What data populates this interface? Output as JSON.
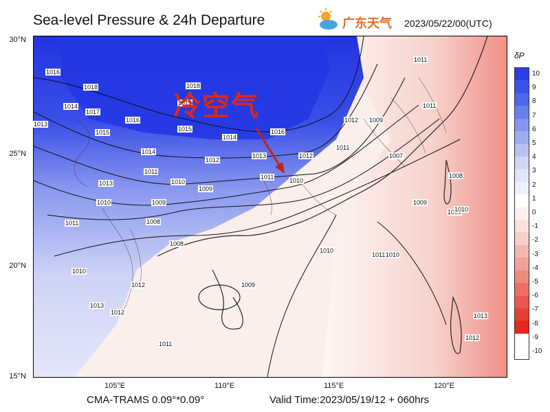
{
  "title": "Sea-level Pressure & 24h Departure",
  "brand_text": "广东天气",
  "date": "2023/05/22/00(UTC)",
  "annotation": "冷空气",
  "footer_left": "CMA-TRAMS 0.09°*0.09°",
  "footer_right": "Valid Time:2023/05/19/12 + 060hrs",
  "y_ticks": [
    "30°N",
    "25°N",
    "20°N",
    "15°N"
  ],
  "x_ticks": [
    "105°E",
    "110°E",
    "115°E",
    "120°E"
  ],
  "colorbar": {
    "title": "δP",
    "labels": [
      "10",
      "9",
      "8",
      "7",
      "6",
      "5",
      "4",
      "3",
      "2",
      "1",
      "0",
      "-1",
      "-2",
      "-3",
      "-4",
      "-5",
      "-6",
      "-7",
      "-8",
      "-9",
      "-10"
    ],
    "colors": [
      "#2b3fe6",
      "#3b52ea",
      "#4f67ec",
      "#6a7fee",
      "#8595f0",
      "#9eabf1",
      "#b8c1f4",
      "#cfd6f7",
      "#e0e5fa",
      "#eef0fc",
      "#ffffff",
      "#fcf0ee",
      "#fae0dc",
      "#f7cfc9",
      "#f4b8b0",
      "#f1a097",
      "#ee8a80",
      "#ec6f66",
      "#ea574e",
      "#e73f36",
      "#e5271f"
    ]
  },
  "isobar_labels": [
    "1016",
    "1018",
    "1017",
    "1014",
    "1013",
    "1015",
    "1016",
    "1018",
    "1015",
    "1015",
    "1014",
    "1016",
    "1014",
    "1013",
    "1012",
    "1011",
    "1010",
    "1009",
    "1012",
    "1013",
    "1011",
    "1010",
    "1009",
    "1008",
    "1010",
    "1011",
    "1012",
    "1009",
    "1007",
    "1011",
    "1011",
    "1008",
    "1009",
    "1010",
    "1011",
    "1010",
    "1012",
    "1013",
    "1012",
    "1011",
    "1009",
    "1008",
    "1010",
    "1009",
    "1010",
    "1013",
    "1012",
    "1011"
  ]
}
